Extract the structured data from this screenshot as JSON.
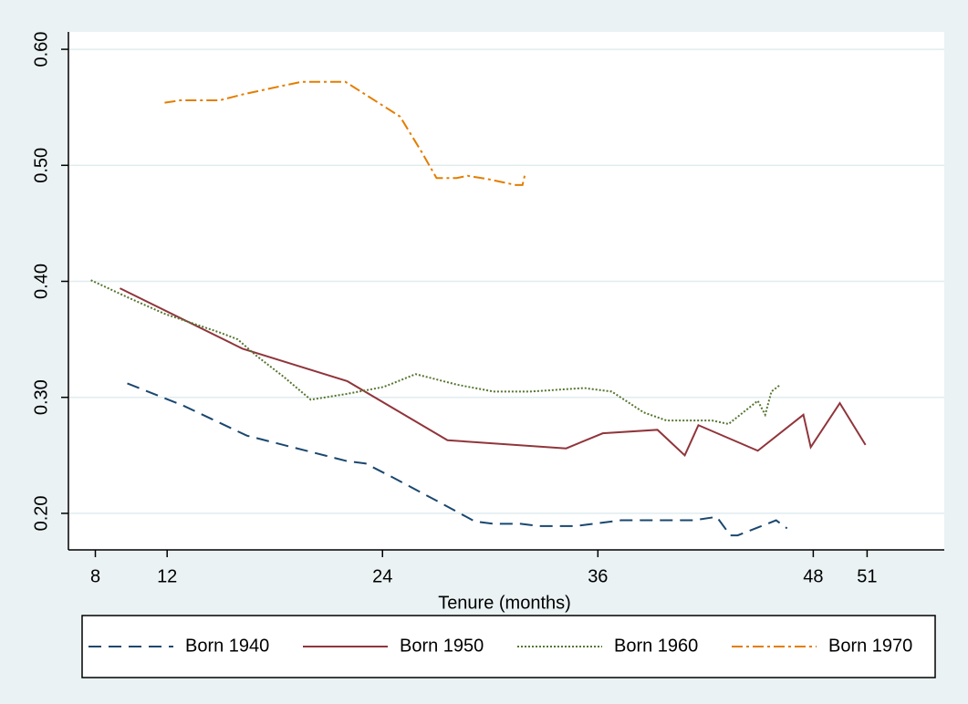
{
  "chart_data": {
    "type": "line",
    "x_label": "Tenure (months)",
    "xlim": [
      6.5,
      55.3
    ],
    "xticks": [
      8,
      12,
      24,
      36,
      48,
      51
    ],
    "ylim": [
      0.1685,
      0.615
    ],
    "yticks": [
      {
        "value": 0.2,
        "label": "0.20"
      },
      {
        "value": 0.3,
        "label": "0.30"
      },
      {
        "value": 0.4,
        "label": "0.40"
      },
      {
        "value": 0.5,
        "label": "0.50"
      },
      {
        "value": 0.6,
        "label": "0.60"
      }
    ],
    "grid": true,
    "legend": "bottom",
    "series": [
      {
        "name": "Born 1940",
        "color": "#1a476f",
        "style": "dashed",
        "x": [
          9.78,
          12.88,
          16.44,
          17.96,
          20.0,
          22.03,
          23.05,
          24.57,
          27.12,
          29.15,
          30.17,
          31.69,
          32.71,
          34.74,
          37.28,
          41.35,
          42.62,
          43.38,
          43.79,
          45.93,
          46.54
        ],
        "values": [
          0.312,
          0.293,
          0.267,
          0.261,
          0.253,
          0.245,
          0.243,
          0.231,
          0.21,
          0.193,
          0.191,
          0.191,
          0.189,
          0.189,
          0.194,
          0.194,
          0.197,
          0.181,
          0.181,
          0.194,
          0.187
        ]
      },
      {
        "name": "Born 1950",
        "color": "#90353b",
        "style": "solid",
        "x": [
          9.37,
          16.19,
          22.03,
          27.62,
          34.23,
          36.27,
          39.32,
          40.84,
          41.6,
          44.91,
          47.45,
          47.86,
          49.48,
          50.91
        ],
        "values": [
          0.394,
          0.342,
          0.314,
          0.263,
          0.256,
          0.269,
          0.272,
          0.25,
          0.276,
          0.254,
          0.285,
          0.257,
          0.295,
          0.259
        ]
      },
      {
        "name": "Born 1960",
        "color": "#55752f",
        "style": "dotted",
        "x": [
          7.75,
          9.83,
          11.86,
          14.91,
          15.93,
          16.96,
          18.47,
          20.0,
          22.03,
          24.07,
          25.85,
          28.13,
          30.17,
          32.2,
          33.22,
          35.25,
          36.77,
          38.55,
          39.83,
          42.37,
          43.28,
          44.91,
          45.32,
          45.67,
          46.18
        ],
        "values": [
          0.401,
          0.386,
          0.372,
          0.356,
          0.35,
          0.336,
          0.318,
          0.298,
          0.303,
          0.309,
          0.32,
          0.311,
          0.305,
          0.305,
          0.306,
          0.308,
          0.305,
          0.287,
          0.28,
          0.28,
          0.277,
          0.297,
          0.285,
          0.305,
          0.311
        ]
      },
      {
        "name": "Born 1970",
        "color": "#e37e00",
        "style": "dashdot",
        "x": [
          11.86,
          12.73,
          14.91,
          16.18,
          17.96,
          19.49,
          21.93,
          23.56,
          24.98,
          26.2,
          27.01,
          28.13,
          28.74,
          29.91,
          31.44,
          31.8,
          31.95
        ],
        "values": [
          0.554,
          0.556,
          0.556,
          0.561,
          0.567,
          0.572,
          0.572,
          0.556,
          0.542,
          0.511,
          0.489,
          0.489,
          0.491,
          0.488,
          0.483,
          0.483,
          0.493
        ]
      }
    ]
  }
}
